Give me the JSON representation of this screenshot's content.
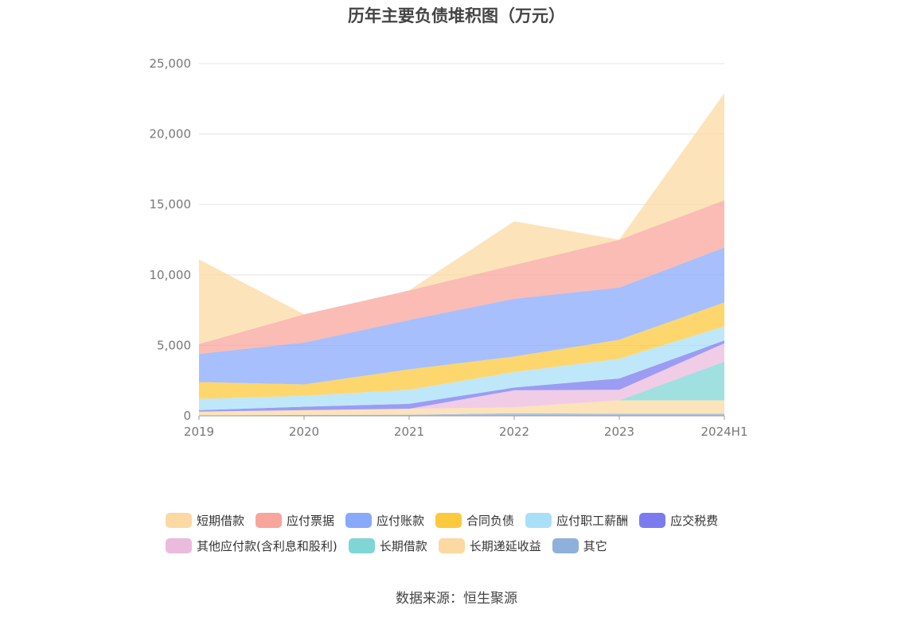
{
  "chart_data": {
    "type": "area",
    "stacked": true,
    "title": "历年主要负债堆积图（万元）",
    "xlabel": "",
    "ylabel": "",
    "categories": [
      "2019",
      "2020",
      "2021",
      "2022",
      "2023",
      "2024H1"
    ],
    "ylim": [
      0,
      25000
    ],
    "yticks": [
      "0",
      "5,000",
      "10,000",
      "15,000",
      "20,000",
      "25,000"
    ],
    "grid": true,
    "legend_position": "bottom",
    "series": [
      {
        "name": "其它",
        "color": "#8fb0da",
        "values": [
          30,
          60,
          80,
          180,
          150,
          150
        ]
      },
      {
        "name": "长期递延收益",
        "color": "#fcd9a2",
        "values": [
          270,
          340,
          420,
          430,
          950,
          950
        ]
      },
      {
        "name": "长期借款",
        "color": "#80d5d5",
        "values": [
          0,
          0,
          0,
          0,
          0,
          2750
        ]
      },
      {
        "name": "其他应付款(含利息和股利)",
        "color": "#ebbbdd",
        "values": [
          0,
          0,
          0,
          1200,
          750,
          1300
        ]
      },
      {
        "name": "应交税费",
        "color": "#7b7bef",
        "values": [
          100,
          250,
          350,
          200,
          800,
          200
        ]
      },
      {
        "name": "应付职工薪酬",
        "color": "#aadff8",
        "values": [
          800,
          780,
          1000,
          1100,
          1400,
          1000
        ]
      },
      {
        "name": "合同负债",
        "color": "#fcc93d",
        "values": [
          1200,
          800,
          1450,
          1100,
          1350,
          1700
        ]
      },
      {
        "name": "应付账款",
        "color": "#89a9fb",
        "values": [
          2000,
          2970,
          3500,
          4100,
          3700,
          3900
        ]
      },
      {
        "name": "应付票据",
        "color": "#f8a59c",
        "values": [
          700,
          2000,
          2100,
          2400,
          3400,
          3350
        ]
      },
      {
        "name": "短期借款",
        "color": "#fcd9a2",
        "values": [
          6000,
          0,
          0,
          3100,
          0,
          7600
        ]
      }
    ],
    "legend": [
      {
        "name": "短期借款",
        "color": "#fcd9a2"
      },
      {
        "name": "应付票据",
        "color": "#f8a59c"
      },
      {
        "name": "应付账款",
        "color": "#89a9fb"
      },
      {
        "name": "合同负债",
        "color": "#fcc93d"
      },
      {
        "name": "应付职工薪酬",
        "color": "#aadff8"
      },
      {
        "name": "应交税费",
        "color": "#7b7bef"
      },
      {
        "name": "其他应付款(含利息和股利)",
        "color": "#ebbbdd"
      },
      {
        "name": "长期借款",
        "color": "#80d5d5"
      },
      {
        "name": "长期递延收益",
        "color": "#fcd9a2"
      },
      {
        "name": "其它",
        "color": "#8fb0da"
      }
    ]
  },
  "source": "数据来源：恒生聚源"
}
